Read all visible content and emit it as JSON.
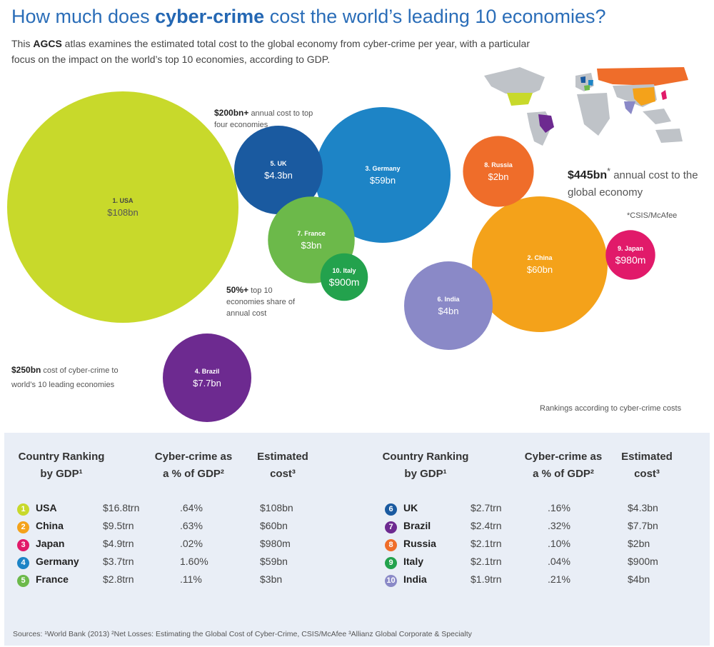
{
  "header": {
    "title_pre": "How much does ",
    "title_bold": "cyber-crime",
    "title_post": " cost the world’s leading 10 economies?",
    "subtitle_pre": "This ",
    "subtitle_bold": "AGCS",
    "subtitle_post": " atlas examines the estimated total cost to the global economy from cyber-crime per year, with a particular focus on the impact on the world’s top 10 economies, according to GDP."
  },
  "annotations": {
    "top4_value": "$200bn+",
    "top4_text": "annual cost to top four economies",
    "share_value": "50%+",
    "share_text": "top 10 economies share of annual cost",
    "leading_value": "$250bn",
    "leading_text": "cost of cyber-crime to world’s 10 leading economies",
    "global_value": "$445bn",
    "global_star": "*",
    "global_text": "annual cost to the global economy",
    "source_note": "*CSIS/McAfee",
    "ranking_note": "Rankings according to cyber-crime costs"
  },
  "colors": {
    "USA": "#c8d92b",
    "China": "#f4a21a",
    "Japan": "#e11a6a",
    "Germany": "#1d84c6",
    "France": "#6cb94a",
    "UK": "#1a5aa0",
    "Brazil": "#6d2a90",
    "Russia": "#ef6d2a",
    "Italy": "#23a24d",
    "India": "#8a89c7"
  },
  "chart_data": {
    "type": "bubble",
    "title": "How much does cyber-crime cost the world’s leading 10 economies?",
    "unit": "annual cyber-crime cost",
    "series": [
      {
        "rank": 1,
        "label": "1. USA",
        "value_label": "$108bn",
        "value_usd_bn": 108
      },
      {
        "rank": 2,
        "label": "2. China",
        "value_label": "$60bn",
        "value_usd_bn": 60
      },
      {
        "rank": 3,
        "label": "3. Germany",
        "value_label": "$59bn",
        "value_usd_bn": 59
      },
      {
        "rank": 4,
        "label": "4. Brazil",
        "value_label": "$7.7bn",
        "value_usd_bn": 7.7
      },
      {
        "rank": 5,
        "label": "5. UK",
        "value_label": "$4.3bn",
        "value_usd_bn": 4.3
      },
      {
        "rank": 6,
        "label": "6. India",
        "value_label": "$4bn",
        "value_usd_bn": 4
      },
      {
        "rank": 7,
        "label": "7. France",
        "value_label": "$3bn",
        "value_usd_bn": 3
      },
      {
        "rank": 8,
        "label": "8. Russia",
        "value_label": "$2bn",
        "value_usd_bn": 2
      },
      {
        "rank": 9,
        "label": "9. Japan",
        "value_label": "$980m",
        "value_usd_bn": 0.98
      },
      {
        "rank": 10,
        "label": "10. Italy",
        "value_label": "$900m",
        "value_usd_bn": 0.9
      }
    ]
  },
  "table": {
    "headers": {
      "ranking": "Country Ranking",
      "ranking2": "by GDP¹",
      "pct": "Cyber-crime as",
      "pct2": "a % of GDP²",
      "cost": "Estimated",
      "cost2": "cost³"
    },
    "left": [
      {
        "num": "1",
        "country": "USA",
        "gdp": "$16.8trn",
        "pct": ".64%",
        "cost": "$108bn",
        "key": "USA"
      },
      {
        "num": "2",
        "country": "China",
        "gdp": "$9.5trn",
        "pct": ".63%",
        "cost": "$60bn",
        "key": "China"
      },
      {
        "num": "3",
        "country": "Japan",
        "gdp": "$4.9trn",
        "pct": ".02%",
        "cost": "$980m",
        "key": "Japan"
      },
      {
        "num": "4",
        "country": "Germany",
        "gdp": "$3.7trn",
        "pct": "1.60%",
        "cost": "$59bn",
        "key": "Germany"
      },
      {
        "num": "5",
        "country": "France",
        "gdp": "$2.8trn",
        "pct": ".11%",
        "cost": "$3bn",
        "key": "France"
      }
    ],
    "right": [
      {
        "num": "6",
        "country": "UK",
        "gdp": "$2.7trn",
        "pct": ".16%",
        "cost": "$4.3bn",
        "key": "UK"
      },
      {
        "num": "7",
        "country": "Brazil",
        "gdp": "$2.4trn",
        "pct": ".32%",
        "cost": "$7.7bn",
        "key": "Brazil"
      },
      {
        "num": "8",
        "country": "Russia",
        "gdp": "$2.1trn",
        "pct": ".10%",
        "cost": "$2bn",
        "key": "Russia"
      },
      {
        "num": "9",
        "country": "Italy",
        "gdp": "$2.1trn",
        "pct": ".04%",
        "cost": "$900m",
        "key": "Italy"
      },
      {
        "num": "10",
        "country": "India",
        "gdp": "$1.9trn",
        "pct": ".21%",
        "cost": "$4bn",
        "key": "India"
      }
    ],
    "sources": "Sources: ¹World Bank (2013) ²Net Losses: Estimating the Global Cost of Cyber-Crime, CSIS/McAfee ³Allianz Global Corporate & Specialty"
  }
}
